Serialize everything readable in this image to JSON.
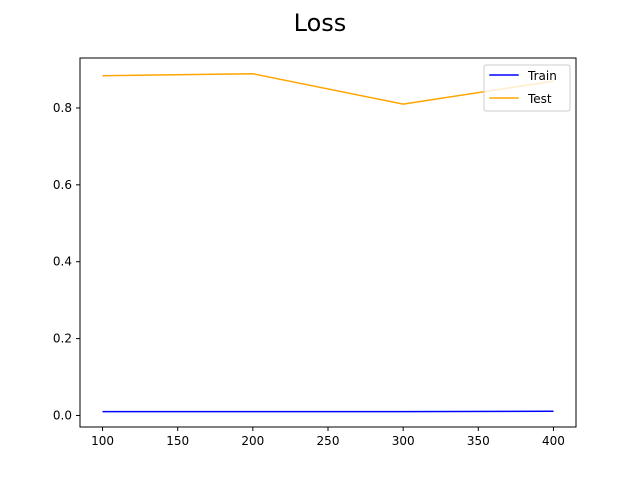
{
  "chart_data": {
    "type": "line",
    "title": "Loss",
    "xlabel": "",
    "ylabel": "",
    "x": [
      100,
      200,
      300,
      400
    ],
    "xlim": [
      85,
      415
    ],
    "ylim": [
      -0.03,
      0.93
    ],
    "xticks": [
      100,
      150,
      200,
      250,
      300,
      350,
      400
    ],
    "yticks": [
      0.0,
      0.2,
      0.4,
      0.6,
      0.8
    ],
    "ytick_labels": [
      "0.0",
      "0.2",
      "0.4",
      "0.6",
      "0.8"
    ],
    "grid": false,
    "legend_position": "top-right",
    "series": [
      {
        "name": "Train",
        "color": "#0000ff",
        "values": [
          0.01,
          0.01,
          0.01,
          0.011
        ]
      },
      {
        "name": "Test",
        "color": "#ffa500",
        "values": [
          0.884,
          0.889,
          0.81,
          0.87
        ]
      }
    ]
  }
}
